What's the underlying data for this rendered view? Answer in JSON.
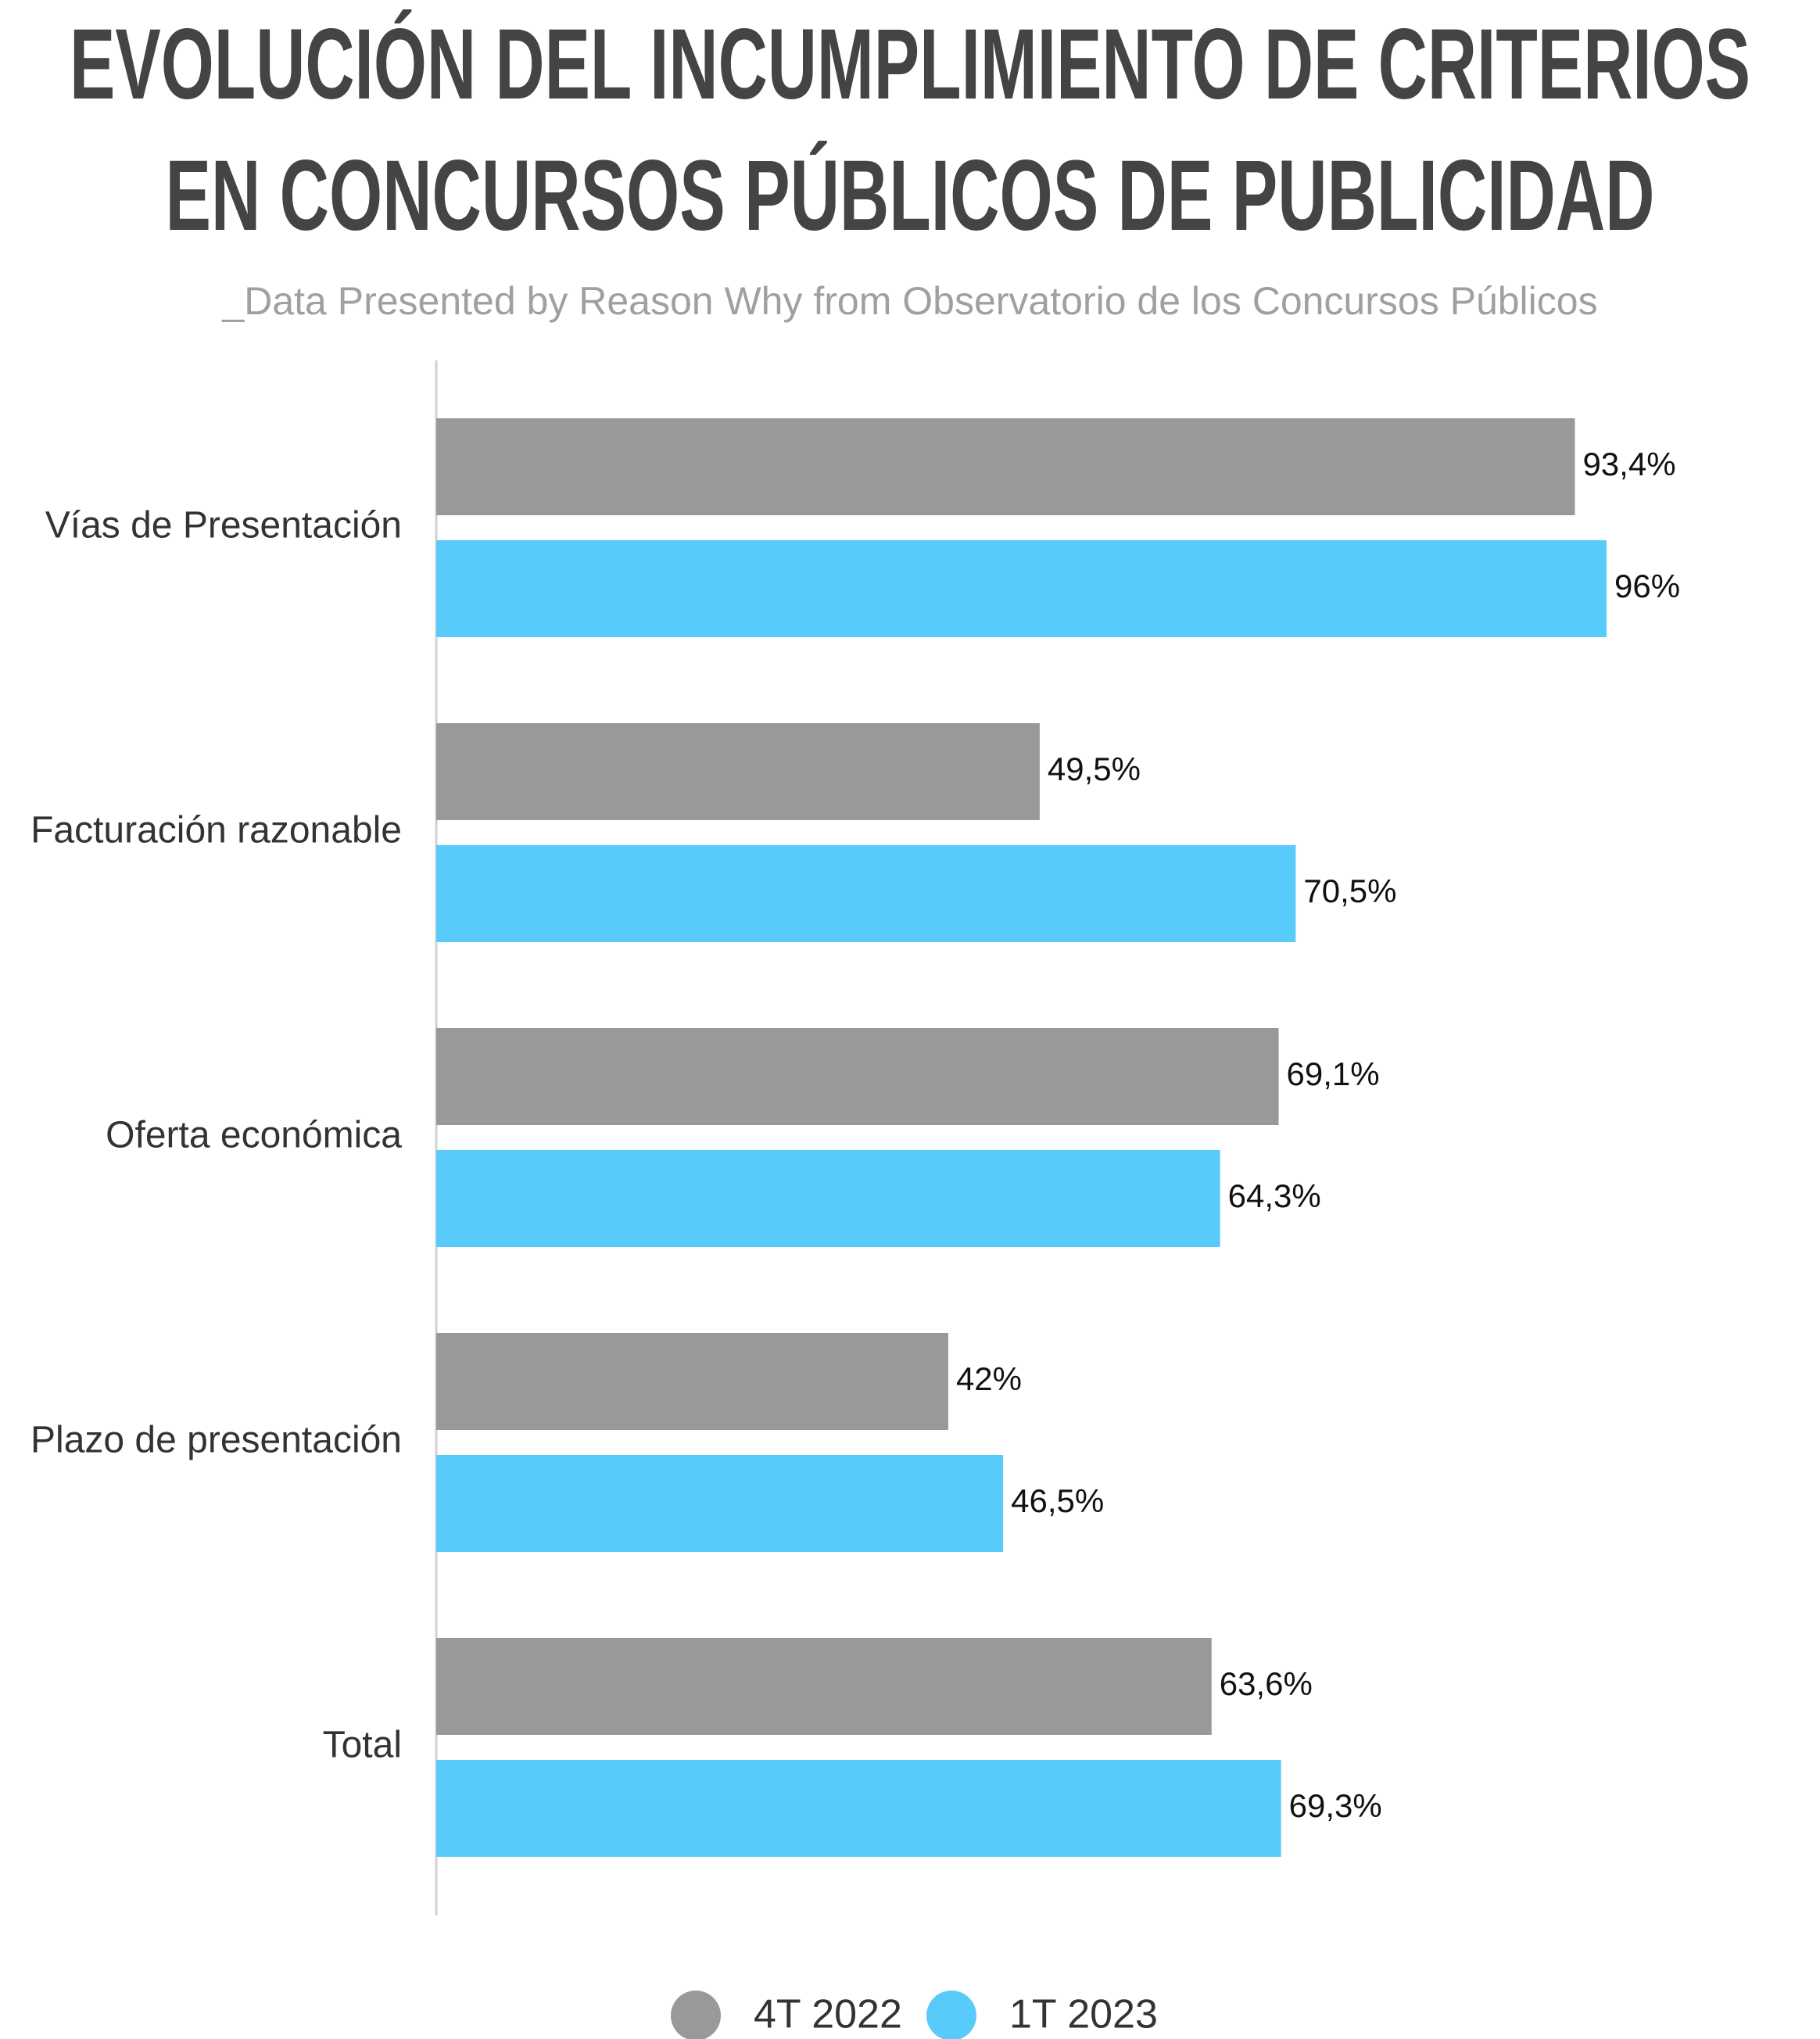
{
  "chart_data": {
    "type": "bar",
    "orientation": "horizontal",
    "title": [
      "EVOLUCIÓN DEL INCUMPLIMIENTO DE CRITERIOS",
      "EN CONCURSOS PÚBLICOS DE PUBLICIDAD"
    ],
    "subtitle": "_Data Presented by Reason Why from Observatorio de los Concursos Públicos",
    "categories": [
      "Vías de Presentación",
      "Facturación razonable",
      "Oferta económica",
      "Plazo de presentación",
      "Total"
    ],
    "series": [
      {
        "name": "4T 2022",
        "color": "#999999",
        "values": [
          93.4,
          49.5,
          69.1,
          42,
          63.6
        ],
        "value_labels": [
          "93,4%",
          "49,5%",
          "69,1%",
          "42%",
          "63,6%"
        ]
      },
      {
        "name": "1T 2023",
        "color": "#59cbfb",
        "values": [
          96,
          70.5,
          64.3,
          46.5,
          69.3
        ],
        "value_labels": [
          "96%",
          "70,5%",
          "64,3%",
          "46,5%",
          "69,3%"
        ]
      }
    ],
    "legend": "bottom"
  }
}
